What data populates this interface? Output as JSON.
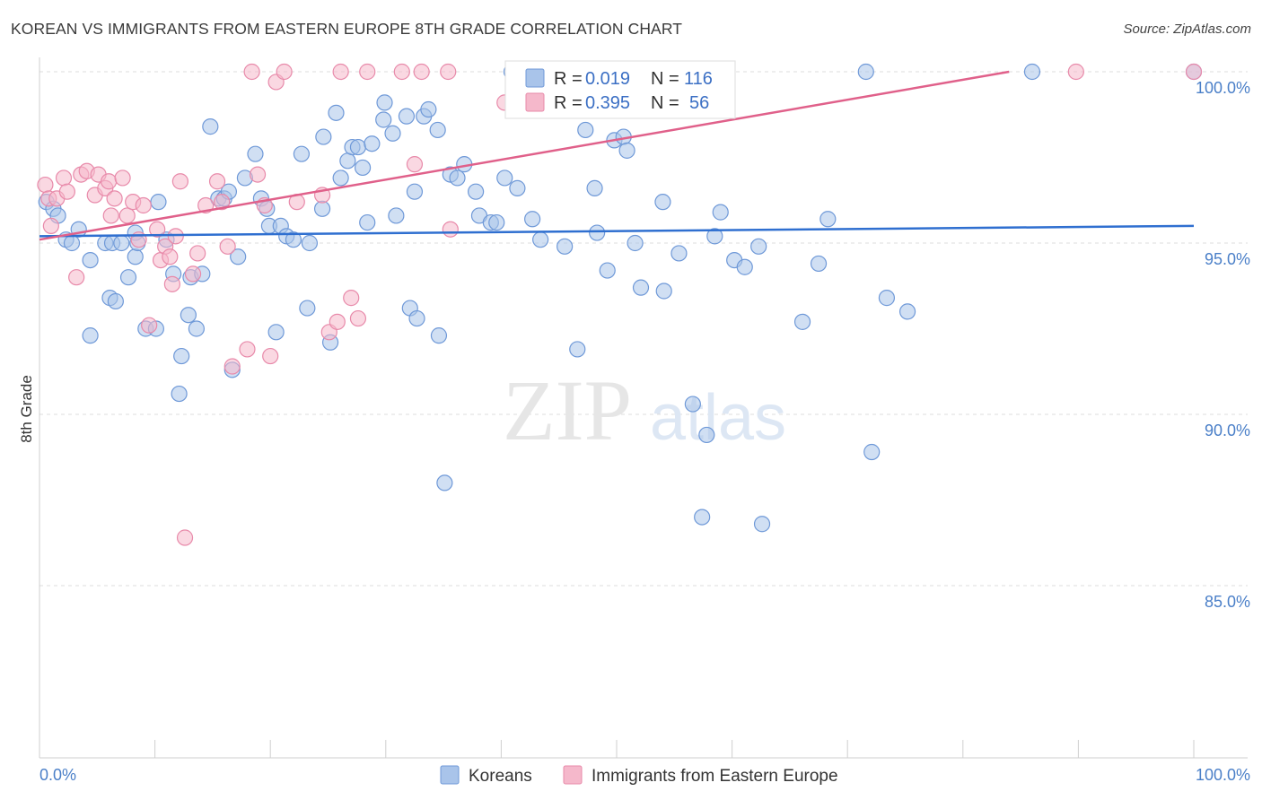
{
  "title": "KOREAN VS IMMIGRANTS FROM EASTERN EUROPE 8TH GRADE CORRELATION CHART",
  "source": "Source: ZipAtlas.com",
  "watermark": {
    "zip": "ZIP",
    "atlas": "atlas"
  },
  "colors": {
    "blue_fill": "#a9c4ea",
    "blue_stroke": "#6f99d8",
    "blue_line": "#2f6fd0",
    "pink_fill": "#f5b8cb",
    "pink_stroke": "#e88aaa",
    "pink_line": "#e0608a",
    "grid": "#dcdcdc",
    "tick_text": "#4a7fc8"
  },
  "legend": {
    "items": [
      {
        "r_label": "R = ",
        "r_value": "0.019",
        "n_label": "N = ",
        "n_value": "116"
      },
      {
        "r_label": "R = ",
        "r_value": "0.395",
        "n_label": "N = ",
        "n_value": "56"
      }
    ]
  },
  "chart_data": {
    "type": "scatter",
    "title": "KOREAN VS IMMIGRANTS FROM EASTERN EUROPE 8TH GRADE CORRELATION CHART",
    "xlabel": "",
    "ylabel": "8th Grade",
    "xlim": [
      0,
      100
    ],
    "ylim": [
      80.5,
      100.8
    ],
    "x_ticks": [
      "0.0%",
      "100.0%"
    ],
    "y_ticks": [
      {
        "value": 100,
        "label": "100.0%"
      },
      {
        "value": 95,
        "label": "95.0%"
      },
      {
        "value": 90,
        "label": "90.0%"
      },
      {
        "value": 85,
        "label": "85.0%"
      }
    ],
    "grid": true,
    "legend_position": "top-center",
    "series": [
      {
        "name": "Koreans",
        "color": "#a9c4ea",
        "trend": {
          "x": [
            0,
            100
          ],
          "y": [
            95.2,
            95.5
          ]
        },
        "points": [
          [
            0.6,
            96.2
          ],
          [
            1.2,
            96.0
          ],
          [
            1.6,
            95.8
          ],
          [
            2.3,
            95.1
          ],
          [
            2.8,
            95.0
          ],
          [
            3.4,
            95.4
          ],
          [
            4.4,
            92.3
          ],
          [
            4.4,
            94.5
          ],
          [
            5.7,
            95.0
          ],
          [
            6.1,
            93.4
          ],
          [
            6.3,
            95.0
          ],
          [
            6.6,
            93.3
          ],
          [
            7.1,
            95.0
          ],
          [
            7.7,
            94.0
          ],
          [
            8.3,
            94.6
          ],
          [
            8.3,
            95.3
          ],
          [
            8.5,
            95.0
          ],
          [
            9.2,
            92.5
          ],
          [
            10.1,
            92.5
          ],
          [
            10.3,
            96.2
          ],
          [
            11.0,
            95.1
          ],
          [
            11.6,
            94.1
          ],
          [
            12.1,
            90.6
          ],
          [
            12.3,
            91.7
          ],
          [
            12.9,
            92.9
          ],
          [
            13.1,
            94.0
          ],
          [
            13.6,
            92.5
          ],
          [
            14.1,
            94.1
          ],
          [
            14.8,
            98.4
          ],
          [
            15.5,
            96.3
          ],
          [
            16.0,
            96.3
          ],
          [
            16.4,
            96.5
          ],
          [
            16.7,
            91.3
          ],
          [
            17.2,
            94.6
          ],
          [
            17.8,
            96.9
          ],
          [
            18.7,
            97.6
          ],
          [
            19.2,
            96.3
          ],
          [
            19.7,
            96.0
          ],
          [
            19.9,
            95.5
          ],
          [
            20.5,
            92.4
          ],
          [
            20.9,
            95.5
          ],
          [
            21.4,
            95.2
          ],
          [
            22.0,
            95.1
          ],
          [
            22.7,
            97.6
          ],
          [
            23.2,
            93.1
          ],
          [
            23.4,
            95.0
          ],
          [
            24.5,
            96.0
          ],
          [
            24.6,
            98.1
          ],
          [
            25.2,
            92.1
          ],
          [
            25.7,
            98.8
          ],
          [
            26.1,
            96.9
          ],
          [
            26.7,
            97.4
          ],
          [
            27.1,
            97.8
          ],
          [
            27.6,
            97.8
          ],
          [
            28.0,
            97.2
          ],
          [
            28.4,
            95.6
          ],
          [
            28.8,
            97.9
          ],
          [
            29.8,
            98.6
          ],
          [
            29.9,
            99.1
          ],
          [
            30.6,
            98.2
          ],
          [
            30.9,
            95.8
          ],
          [
            31.8,
            98.7
          ],
          [
            32.1,
            93.1
          ],
          [
            32.5,
            96.5
          ],
          [
            32.7,
            92.8
          ],
          [
            33.3,
            98.7
          ],
          [
            33.7,
            98.9
          ],
          [
            34.5,
            98.3
          ],
          [
            34.6,
            92.3
          ],
          [
            35.1,
            88.0
          ],
          [
            35.6,
            97.0
          ],
          [
            36.2,
            96.9
          ],
          [
            36.8,
            97.3
          ],
          [
            37.8,
            96.5
          ],
          [
            38.1,
            95.8
          ],
          [
            39.1,
            95.6
          ],
          [
            39.6,
            95.6
          ],
          [
            40.3,
            96.9
          ],
          [
            40.9,
            100.0
          ],
          [
            41.4,
            96.6
          ],
          [
            42.7,
            95.7
          ],
          [
            43.4,
            95.1
          ],
          [
            45.5,
            94.9
          ],
          [
            46.6,
            91.9
          ],
          [
            47.3,
            98.3
          ],
          [
            48.1,
            96.6
          ],
          [
            48.3,
            95.3
          ],
          [
            49.2,
            94.2
          ],
          [
            49.8,
            98.0
          ],
          [
            50.6,
            98.1
          ],
          [
            50.9,
            97.7
          ],
          [
            51.6,
            95.0
          ],
          [
            52.1,
            93.7
          ],
          [
            54.0,
            96.2
          ],
          [
            54.1,
            93.6
          ],
          [
            55.4,
            94.7
          ],
          [
            56.6,
            90.3
          ],
          [
            57.4,
            87.0
          ],
          [
            57.8,
            89.4
          ],
          [
            58.5,
            95.2
          ],
          [
            59.0,
            95.9
          ],
          [
            60.2,
            94.5
          ],
          [
            61.1,
            94.3
          ],
          [
            62.3,
            94.9
          ],
          [
            62.6,
            86.8
          ],
          [
            66.1,
            92.7
          ],
          [
            67.5,
            94.4
          ],
          [
            68.3,
            95.7
          ],
          [
            71.6,
            100.0
          ],
          [
            72.1,
            88.9
          ],
          [
            73.4,
            93.4
          ],
          [
            75.2,
            93.0
          ],
          [
            86.0,
            100.0
          ],
          [
            100.0,
            100.0
          ]
        ]
      },
      {
        "name": "Immigrants from Eastern Europe",
        "color": "#f5b8cb",
        "trend": {
          "x": [
            0,
            84
          ],
          "y": [
            95.1,
            100.0
          ]
        },
        "points": [
          [
            0.5,
            96.7
          ],
          [
            0.8,
            96.3
          ],
          [
            1.0,
            95.5
          ],
          [
            1.5,
            96.3
          ],
          [
            2.1,
            96.9
          ],
          [
            2.4,
            96.5
          ],
          [
            3.2,
            94.0
          ],
          [
            3.6,
            97.0
          ],
          [
            4.1,
            97.1
          ],
          [
            4.8,
            96.4
          ],
          [
            5.1,
            97.0
          ],
          [
            5.7,
            96.6
          ],
          [
            6.0,
            96.8
          ],
          [
            6.2,
            95.8
          ],
          [
            6.5,
            96.3
          ],
          [
            7.2,
            96.9
          ],
          [
            7.6,
            95.8
          ],
          [
            8.1,
            96.2
          ],
          [
            8.6,
            95.1
          ],
          [
            9.0,
            96.1
          ],
          [
            9.5,
            92.6
          ],
          [
            10.2,
            95.4
          ],
          [
            10.5,
            94.5
          ],
          [
            10.9,
            94.9
          ],
          [
            11.3,
            94.6
          ],
          [
            11.5,
            93.8
          ],
          [
            11.8,
            95.2
          ],
          [
            12.2,
            96.8
          ],
          [
            12.6,
            86.4
          ],
          [
            13.3,
            94.1
          ],
          [
            13.7,
            94.7
          ],
          [
            14.4,
            96.1
          ],
          [
            15.4,
            96.8
          ],
          [
            15.8,
            96.2
          ],
          [
            16.3,
            94.9
          ],
          [
            16.7,
            91.4
          ],
          [
            18.0,
            91.9
          ],
          [
            18.4,
            100.0
          ],
          [
            18.9,
            97.0
          ],
          [
            19.5,
            96.1
          ],
          [
            20.0,
            91.7
          ],
          [
            20.5,
            99.7
          ],
          [
            21.2,
            100.0
          ],
          [
            22.3,
            96.2
          ],
          [
            24.5,
            96.4
          ],
          [
            25.1,
            92.4
          ],
          [
            25.8,
            92.7
          ],
          [
            26.1,
            100.0
          ],
          [
            27.0,
            93.4
          ],
          [
            27.6,
            92.8
          ],
          [
            28.4,
            100.0
          ],
          [
            31.4,
            100.0
          ],
          [
            32.5,
            97.3
          ],
          [
            33.1,
            100.0
          ],
          [
            35.4,
            100.0
          ],
          [
            35.6,
            95.4
          ],
          [
            40.3,
            99.1
          ],
          [
            89.8,
            100.0
          ],
          [
            100.0,
            100.0
          ]
        ]
      }
    ]
  }
}
